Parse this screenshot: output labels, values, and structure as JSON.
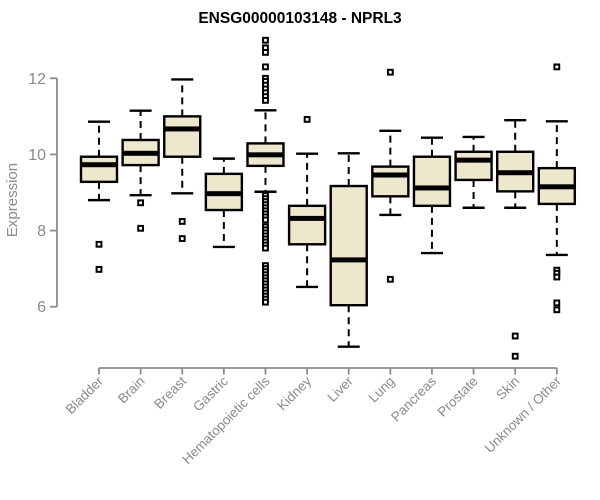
{
  "chart_data": {
    "type": "boxplot",
    "title": "ENSG00000103148 - NPRL3",
    "ylabel": "Expression",
    "xlabel": "",
    "yticks": [
      6,
      8,
      10,
      12
    ],
    "ylim": [
      4.5,
      13.3
    ],
    "grid": false,
    "legend": "none",
    "colors": {
      "box_fill": "#EDE7CE",
      "box_border": "#000000",
      "median": "#000000",
      "whisker": "#000000",
      "outlier": "#000000",
      "axis": "#8c8c8c",
      "tick_label": "#8a8a8a",
      "title": "#000000"
    },
    "categories": [
      "Bladder",
      "Brain",
      "Breast",
      "Gastric",
      "Hematopoietic cells",
      "Kidney",
      "Liver",
      "Lung",
      "Pancreas",
      "Prostate",
      "Skin",
      "Unknown / Other"
    ],
    "series": [
      {
        "name": "Bladder",
        "whisker_low": 8.8,
        "q1": 9.28,
        "median": 9.73,
        "q3": 9.94,
        "whisker_high": 10.86,
        "outliers": [
          7.64,
          6.98
        ]
      },
      {
        "name": "Brain",
        "whisker_low": 8.93,
        "q1": 9.72,
        "median": 10.03,
        "q3": 10.38,
        "whisker_high": 11.15,
        "outliers": [
          8.73,
          8.06
        ]
      },
      {
        "name": "Breast",
        "whisker_low": 8.98,
        "q1": 9.94,
        "median": 10.67,
        "q3": 11.0,
        "whisker_high": 11.97,
        "outliers": [
          8.24,
          7.79
        ]
      },
      {
        "name": "Gastric",
        "whisker_low": 7.57,
        "q1": 8.54,
        "median": 8.97,
        "q3": 9.49,
        "whisker_high": 9.89,
        "outliers": []
      },
      {
        "name": "Hematopoietic cells",
        "whisker_low": 9.02,
        "q1": 9.7,
        "median": 9.99,
        "q3": 10.29,
        "whisker_high": 11.16,
        "outliers": [
          13.0,
          12.8,
          12.68,
          12.3,
          12.0,
          11.92,
          11.82,
          11.72,
          11.62,
          11.52,
          11.42,
          8.92,
          8.84,
          8.76,
          8.68,
          8.6,
          8.52,
          8.44,
          8.36,
          8.28,
          8.1,
          8.02,
          7.94,
          7.86,
          7.78,
          7.7,
          7.62,
          7.54,
          7.08,
          7.0,
          6.92,
          6.84,
          6.76,
          6.68,
          6.6,
          6.52,
          6.44,
          6.36,
          6.28,
          6.2,
          6.12
        ]
      },
      {
        "name": "Kidney",
        "whisker_low": 6.52,
        "q1": 7.64,
        "median": 8.32,
        "q3": 8.65,
        "whisker_high": 10.02,
        "outliers": [
          10.92
        ]
      },
      {
        "name": "Liver",
        "whisker_low": 4.95,
        "q1": 6.04,
        "median": 7.23,
        "q3": 9.17,
        "whisker_high": 10.03,
        "outliers": []
      },
      {
        "name": "Lung",
        "whisker_low": 8.41,
        "q1": 8.9,
        "median": 9.46,
        "q3": 9.68,
        "whisker_high": 10.62,
        "outliers": [
          12.16,
          6.72
        ]
      },
      {
        "name": "Pancreas",
        "whisker_low": 7.41,
        "q1": 8.65,
        "median": 9.12,
        "q3": 9.94,
        "whisker_high": 10.44,
        "outliers": []
      },
      {
        "name": "Prostate",
        "whisker_low": 8.6,
        "q1": 9.33,
        "median": 9.85,
        "q3": 10.07,
        "whisker_high": 10.46,
        "outliers": []
      },
      {
        "name": "Skin",
        "whisker_low": 8.6,
        "q1": 9.03,
        "median": 9.52,
        "q3": 10.07,
        "whisker_high": 10.9,
        "outliers": [
          5.23,
          4.7
        ]
      },
      {
        "name": "Unknown / Other",
        "whisker_low": 7.36,
        "q1": 8.7,
        "median": 9.15,
        "q3": 9.64,
        "whisker_high": 10.87,
        "outliers": [
          12.3,
          6.96,
          6.88,
          6.78,
          6.1,
          5.92
        ]
      }
    ]
  }
}
